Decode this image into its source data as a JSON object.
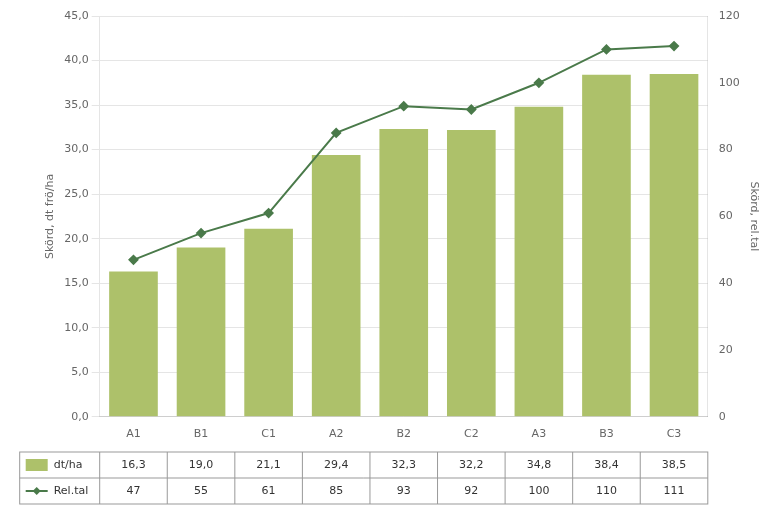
{
  "chart_data": {
    "type": "bar",
    "categories": [
      "A1",
      "B1",
      "C1",
      "A2",
      "B2",
      "C2",
      "A3",
      "B3",
      "C3"
    ],
    "series": [
      {
        "name": "dt/ha",
        "type": "bar",
        "color": "#adc16a",
        "values": [
          16.3,
          19.0,
          21.1,
          29.4,
          32.3,
          32.2,
          34.8,
          38.4,
          38.5
        ],
        "value_labels": [
          "16,3",
          "19,0",
          "21,1",
          "29,4",
          "32,3",
          "32,2",
          "34,8",
          "38,4",
          "38,5"
        ]
      },
      {
        "name": "Rel.tal",
        "type": "line",
        "axis": "y2",
        "color": "#4a7a4a",
        "marker": "diamond",
        "values": [
          47,
          55,
          61,
          85,
          93,
          92,
          100,
          110,
          111
        ]
      }
    ],
    "ylabel": "Skörd, dt frö/ha",
    "y2label": "Skörd, rel.tal",
    "ylim": [
      0,
      45
    ],
    "yticks": [
      {
        "value": 0,
        "label": "0,0"
      },
      {
        "value": 5,
        "label": "5,0"
      },
      {
        "value": 10,
        "label": "10,0"
      },
      {
        "value": 15,
        "label": "15,0"
      },
      {
        "value": 20,
        "label": "20,0"
      },
      {
        "value": 25,
        "label": "25,0"
      },
      {
        "value": 30,
        "label": "30,0"
      },
      {
        "value": 35,
        "label": "35,0"
      },
      {
        "value": 40,
        "label": "40,0"
      },
      {
        "value": 45,
        "label": "45,0"
      }
    ],
    "y2lim": [
      0,
      120
    ],
    "y2ticks": [
      0,
      20,
      40,
      60,
      80,
      100,
      120
    ],
    "grid": true
  }
}
